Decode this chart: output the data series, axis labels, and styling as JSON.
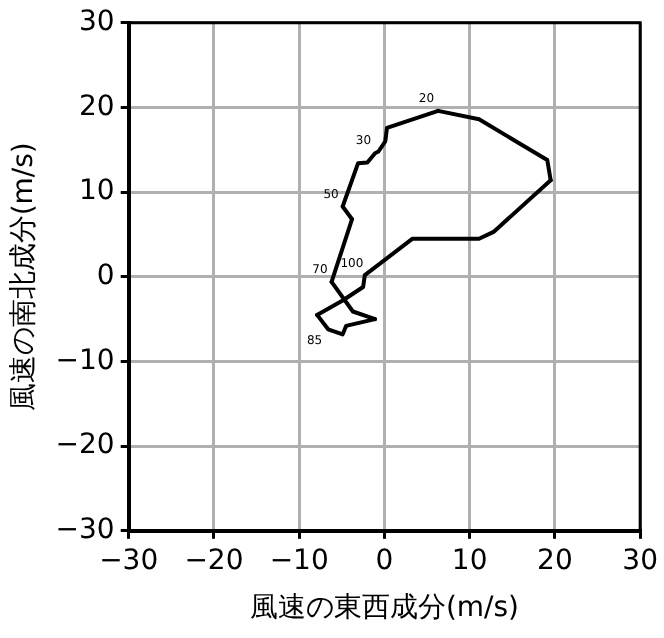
{
  "chart_data": {
    "type": "line",
    "xlabel": "風速の東西成分(m/s)",
    "ylabel": "風速の南北成分(m/s)",
    "xlim": [
      -30,
      30
    ],
    "ylim": [
      -30,
      30
    ],
    "xticks": [
      {
        "value": -30,
        "label": "−30"
      },
      {
        "value": -20,
        "label": "−20"
      },
      {
        "value": -10,
        "label": "−10"
      },
      0,
      10,
      20,
      30
    ],
    "yticks": [
      {
        "value": -30,
        "label": "−30"
      },
      {
        "value": -20,
        "label": "−20"
      },
      {
        "value": -10,
        "label": "−10"
      },
      0,
      10,
      20,
      30
    ],
    "grid": true,
    "marker": "none",
    "line_style": "solid",
    "series": [
      {
        "color": "#000000",
        "x": [
          6.3,
          11.1,
          19.1,
          19.5
        ],
        "values": [
          19.6,
          18.6,
          13.8,
          11.4
        ]
      },
      {
        "color": "#000000",
        "x": [
          19.5,
          12.8,
          11.1,
          3.3,
          -2.3,
          -2.5,
          -4.9,
          -7.9
        ],
        "values": [
          11.4,
          5.3,
          4.5,
          4.5,
          0.2,
          -1.2,
          -2.8,
          -4.5
        ]
      },
      {
        "color": "#000000",
        "x": [
          -7.9,
          -6.6,
          -4.9,
          -4.5,
          -1.1
        ],
        "values": [
          -4.5,
          -6.2,
          -6.8,
          -5.8,
          -5
        ]
      },
      {
        "color": "#000000",
        "x": [
          -1.1,
          -3.7,
          -6.2
        ],
        "values": [
          -5,
          -4.1,
          -0.6
        ]
      },
      {
        "color": "#000000",
        "x": [
          -6.2,
          -3.8
        ],
        "values": [
          -0.6,
          6.8
        ]
      },
      {
        "color": "#000000",
        "x": [
          -3.8,
          -4.9
        ],
        "values": [
          6.8,
          8.3
        ]
      },
      {
        "color": "#000000",
        "x": [
          -4.9,
          -3.1,
          -2,
          -1.1,
          -0.7,
          0.1,
          0.3,
          6.3
        ],
        "values": [
          8.3,
          13.4,
          13.5,
          14.6,
          14.8,
          16,
          17.6,
          19.6
        ]
      }
    ],
    "annotations": [
      {
        "text": "20",
        "x": 6.3,
        "y": 19.6
      },
      {
        "text": "30",
        "x": -1.1,
        "y": 14.6
      },
      {
        "text": "50",
        "x": -4.9,
        "y": 8.3
      },
      {
        "text": "70",
        "x": -6.2,
        "y": -0.6
      },
      {
        "text": "100",
        "x": -2,
        "y": 0.1
      },
      {
        "text": "85",
        "x": -6.6,
        "y": -6.2
      }
    ]
  }
}
